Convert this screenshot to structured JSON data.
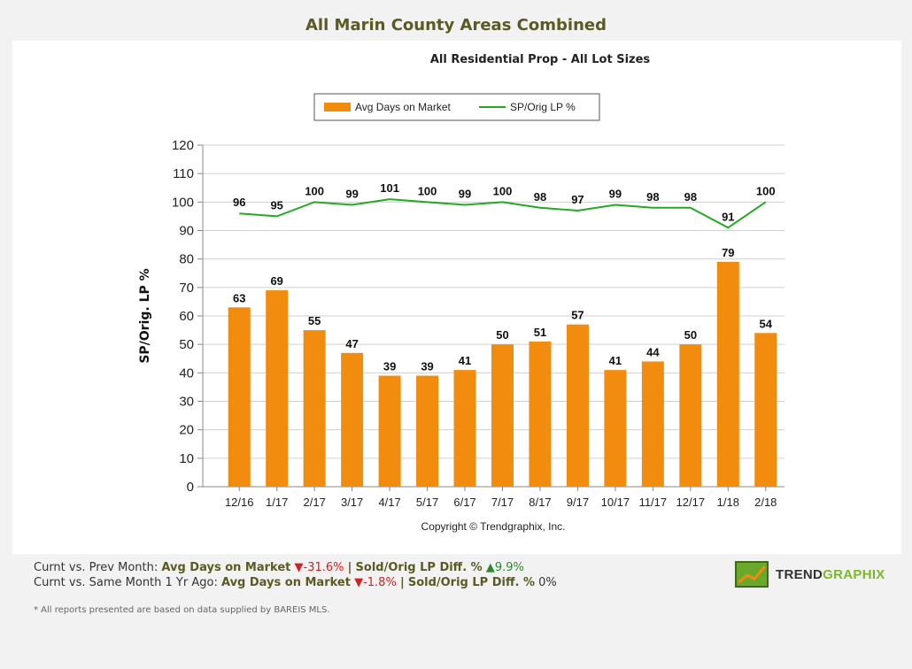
{
  "title": "All Marin County Areas Combined",
  "subtitle": "All Residential Prop - All Lot Sizes",
  "copyright": "Copyright © Trendgraphix, Inc.",
  "colors": {
    "bar": "#f28c0f",
    "line": "#22aa22",
    "title": "#5a5a22"
  },
  "chart_data": {
    "type": "bar",
    "categories": [
      "12/16",
      "1/17",
      "2/17",
      "3/17",
      "4/17",
      "5/17",
      "6/17",
      "7/17",
      "8/17",
      "9/17",
      "10/17",
      "11/17",
      "12/17",
      "1/18",
      "2/18"
    ],
    "series": [
      {
        "name": "Avg Days on Market",
        "type": "bar",
        "values": [
          63,
          69,
          55,
          47,
          39,
          39,
          41,
          50,
          51,
          57,
          41,
          44,
          50,
          79,
          54
        ]
      },
      {
        "name": "SP/Orig LP %",
        "type": "line",
        "values": [
          96,
          95,
          100,
          99,
          101,
          100,
          99,
          100,
          98,
          97,
          99,
          98,
          98,
          91,
          100
        ]
      }
    ],
    "ylabel": "SP/Orig. LP %",
    "xlabel": "",
    "ylim": [
      0,
      120
    ],
    "yticks": [
      0,
      10,
      20,
      30,
      40,
      50,
      60,
      70,
      80,
      90,
      100,
      110,
      120
    ],
    "grid": true,
    "legend": "top-center"
  },
  "footer": {
    "row1": {
      "prefix": "Curnt vs. Prev Month:",
      "dom_label": "Avg Days on Market",
      "dom_arrow": "▼",
      "dom_value": "-31.6%",
      "sep": "|",
      "lp_label": "Sold/Orig LP Diff. %",
      "lp_arrow": "▲",
      "lp_value": "9.9%"
    },
    "row2": {
      "prefix": "Curnt vs. Same Month 1 Yr Ago:",
      "dom_label": "Avg Days on Market",
      "dom_arrow": "▼",
      "dom_value": "-1.8%",
      "sep": "|",
      "lp_label": "Sold/Orig LP Diff. %",
      "lp_value": "0%"
    },
    "note": "* All reports presented are based on data supplied by BAREIS MLS."
  },
  "logo": {
    "part1": "TREND",
    "part2": "GRAPHIX"
  }
}
